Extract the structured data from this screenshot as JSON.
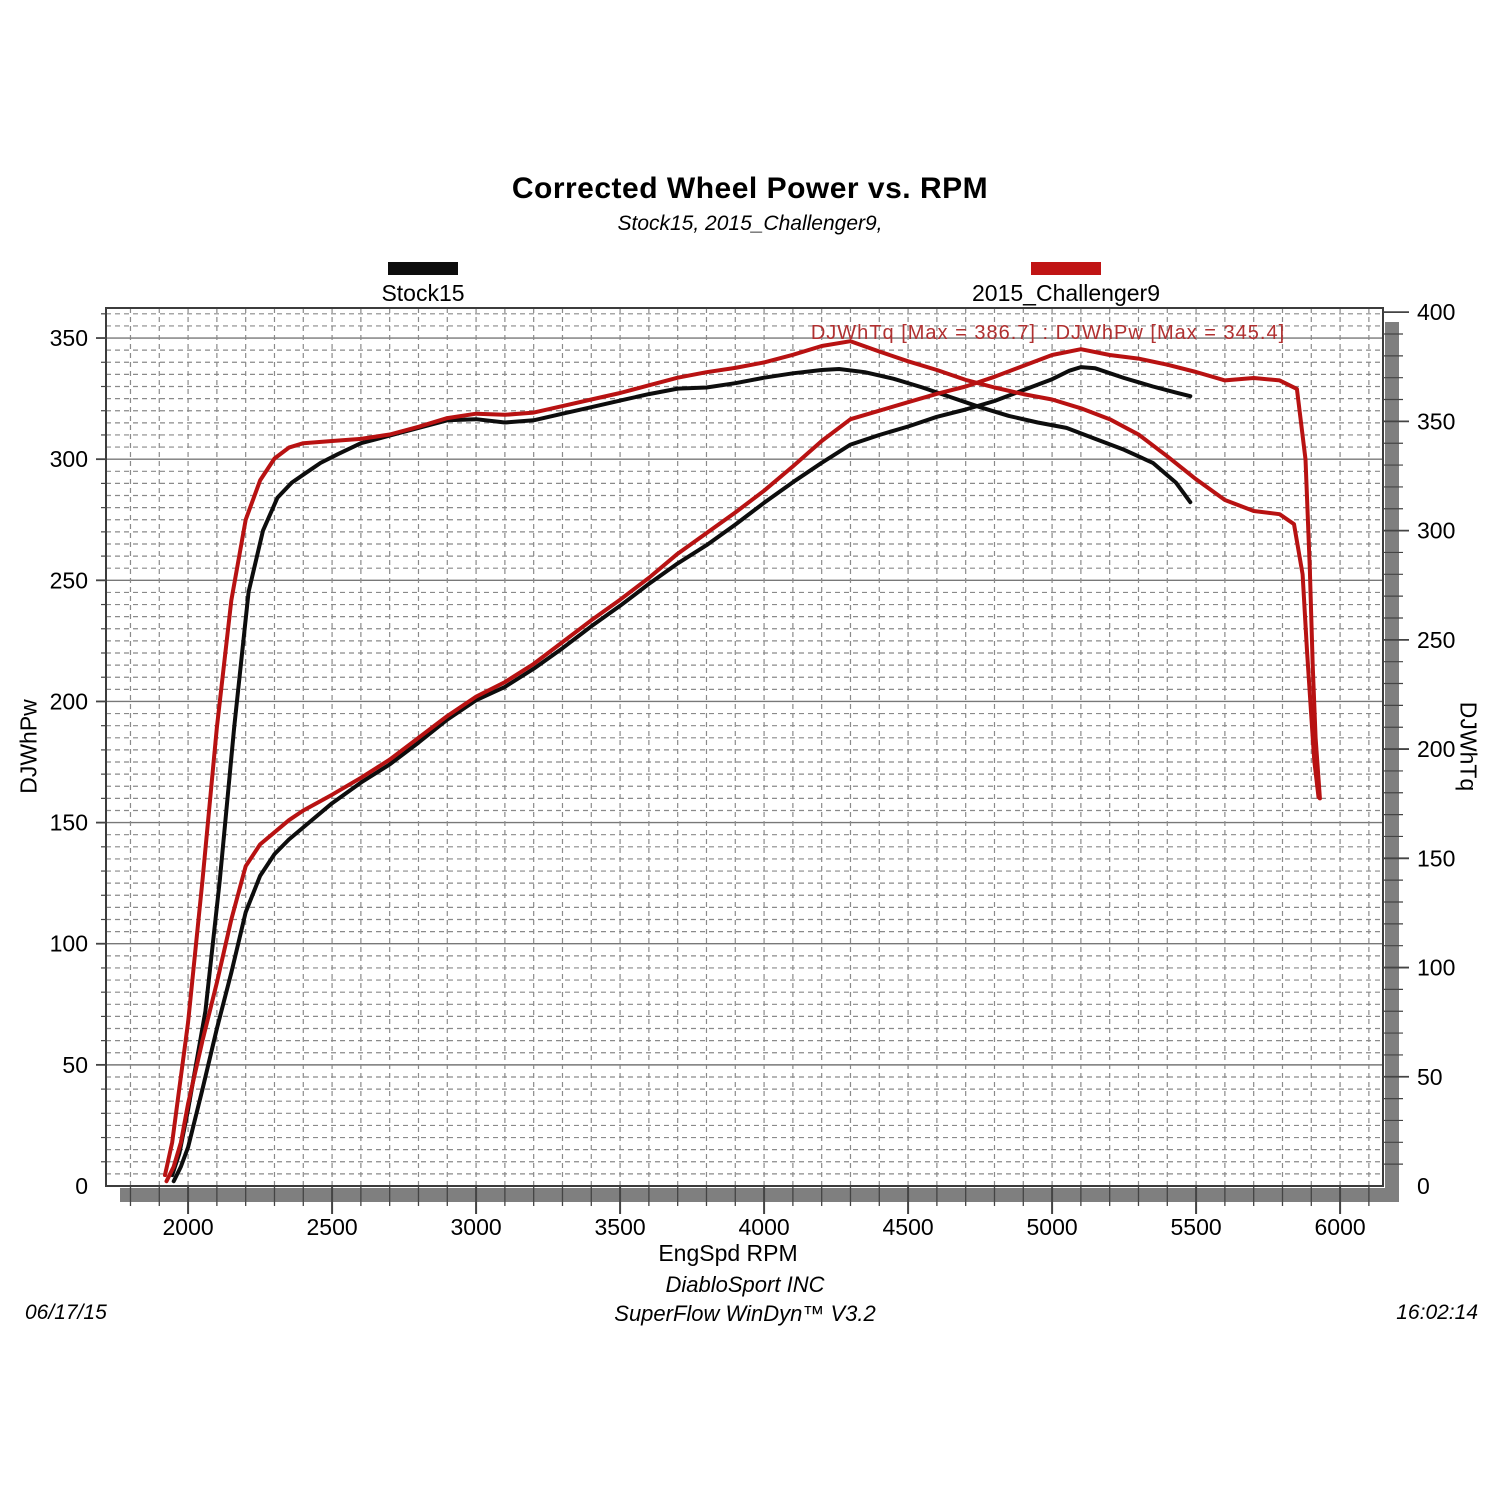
{
  "header": {
    "title": "Corrected Wheel Power vs. RPM",
    "subtitle": "Stock15, 2015_Challenger9,"
  },
  "legend": [
    {
      "label": "Stock15",
      "color": "#0d0d0d"
    },
    {
      "label": "2015_Challenger9",
      "color": "#c01414"
    }
  ],
  "annotation": {
    "text": "DJWhTq [Max = 386.7] : DJWhPw [Max = 345.4]",
    "color": "#b03030"
  },
  "footer": {
    "company": "DiabloSport INC",
    "software": "SuperFlow WinDyn™ V3.2",
    "date": "06/17/15",
    "time": "16:02:14"
  },
  "colors": {
    "stock_line": "#0d0d0d",
    "tuned_line": "#b81212",
    "grid_minor": "#8a8a8a",
    "grid_major": "#787878",
    "plot_border": "#3c3c3c",
    "shadow": "#7f7f7f",
    "tick": "#444444"
  },
  "chart_data": {
    "type": "line",
    "title": "Corrected Wheel Power vs. RPM",
    "xlabel": "EngSpd RPM",
    "ylabel_left": "DJWhPw",
    "ylabel_right": "DJWhTq",
    "x_range": [
      1715,
      6149
    ],
    "y_left_range": [
      0,
      362.4
    ],
    "y_right_range": [
      0,
      401.9
    ],
    "x_ticks": [
      2000,
      2500,
      3000,
      3500,
      4000,
      4500,
      5000,
      5500,
      6000
    ],
    "y_left_ticks": [
      0,
      50,
      100,
      150,
      200,
      250,
      300,
      350
    ],
    "y_right_ticks": [
      0,
      50,
      100,
      150,
      200,
      250,
      300,
      350,
      400
    ],
    "grid": {
      "v_minor_step_rpm": 100,
      "h_minor_step_left": 5,
      "h_major_step_left": 50,
      "legend_position": "top"
    },
    "max_values": {
      "tuned_DJWhTq": 386.7,
      "tuned_DJWhPw": 345.4
    },
    "series": [
      {
        "name": "Stock15 DJWhTq",
        "axis": "right",
        "color": "#0d0d0d",
        "points": [
          [
            1945,
            5
          ],
          [
            1970,
            15
          ],
          [
            2000,
            35
          ],
          [
            2060,
            80
          ],
          [
            2110,
            140
          ],
          [
            2160,
            210
          ],
          [
            2210,
            272
          ],
          [
            2260,
            300
          ],
          [
            2310,
            315
          ],
          [
            2360,
            322
          ],
          [
            2410,
            326.5
          ],
          [
            2460,
            331
          ],
          [
            2520,
            335
          ],
          [
            2600,
            340
          ],
          [
            2700,
            343.5
          ],
          [
            2800,
            347
          ],
          [
            2900,
            350.5
          ],
          [
            3000,
            351
          ],
          [
            3100,
            349.5
          ],
          [
            3200,
            350.5
          ],
          [
            3300,
            353.5
          ],
          [
            3400,
            356.5
          ],
          [
            3500,
            359.5
          ],
          [
            3600,
            362.5
          ],
          [
            3700,
            365
          ],
          [
            3800,
            365.5
          ],
          [
            3900,
            367.5
          ],
          [
            4000,
            370
          ],
          [
            4100,
            372
          ],
          [
            4200,
            373.5
          ],
          [
            4260,
            374
          ],
          [
            4350,
            372.5
          ],
          [
            4450,
            369.5
          ],
          [
            4550,
            365.5
          ],
          [
            4650,
            361
          ],
          [
            4750,
            356.5
          ],
          [
            4850,
            352.5
          ],
          [
            4950,
            349.5
          ],
          [
            5050,
            347
          ],
          [
            5150,
            342
          ],
          [
            5250,
            337
          ],
          [
            5350,
            331
          ],
          [
            5430,
            322
          ],
          [
            5480,
            313
          ]
        ]
      },
      {
        "name": "Stock15 DJWhPw",
        "axis": "left",
        "color": "#0d0d0d",
        "points": [
          [
            1950,
            2
          ],
          [
            1975,
            8
          ],
          [
            2000,
            16
          ],
          [
            2050,
            40
          ],
          [
            2100,
            65
          ],
          [
            2150,
            88
          ],
          [
            2200,
            113
          ],
          [
            2250,
            128
          ],
          [
            2300,
            137
          ],
          [
            2350,
            143
          ],
          [
            2400,
            148
          ],
          [
            2500,
            158
          ],
          [
            2600,
            166.5
          ],
          [
            2700,
            174
          ],
          [
            2800,
            183
          ],
          [
            2900,
            192.5
          ],
          [
            3000,
            200.5
          ],
          [
            3100,
            206
          ],
          [
            3200,
            213.5
          ],
          [
            3300,
            222
          ],
          [
            3400,
            231
          ],
          [
            3500,
            239.5
          ],
          [
            3600,
            248.5
          ],
          [
            3700,
            257
          ],
          [
            3800,
            264.5
          ],
          [
            3900,
            273
          ],
          [
            4000,
            282
          ],
          [
            4100,
            290.5
          ],
          [
            4200,
            298.5
          ],
          [
            4300,
            306
          ],
          [
            4400,
            310
          ],
          [
            4500,
            313.5
          ],
          [
            4600,
            317.5
          ],
          [
            4700,
            320.5
          ],
          [
            4800,
            324
          ],
          [
            4900,
            328.5
          ],
          [
            5000,
            333
          ],
          [
            5060,
            336.5
          ],
          [
            5100,
            338
          ],
          [
            5150,
            337.5
          ],
          [
            5250,
            333.5
          ],
          [
            5350,
            330
          ],
          [
            5430,
            327.5
          ],
          [
            5480,
            326
          ]
        ]
      },
      {
        "name": "2015_Challenger9 DJWhTq",
        "axis": "right",
        "color": "#b81212",
        "points": [
          [
            1920,
            5
          ],
          [
            1945,
            20
          ],
          [
            1970,
            45
          ],
          [
            2000,
            75
          ],
          [
            2050,
            140
          ],
          [
            2100,
            210
          ],
          [
            2150,
            268
          ],
          [
            2200,
            305
          ],
          [
            2250,
            323
          ],
          [
            2300,
            333
          ],
          [
            2350,
            338
          ],
          [
            2400,
            340
          ],
          [
            2500,
            341
          ],
          [
            2600,
            342
          ],
          [
            2700,
            344
          ],
          [
            2800,
            347.5
          ],
          [
            2900,
            351.5
          ],
          [
            3000,
            353.5
          ],
          [
            3100,
            353
          ],
          [
            3200,
            354
          ],
          [
            3300,
            357
          ],
          [
            3400,
            360
          ],
          [
            3500,
            363
          ],
          [
            3600,
            366.5
          ],
          [
            3700,
            370
          ],
          [
            3800,
            372.5
          ],
          [
            3900,
            374.5
          ],
          [
            4000,
            377
          ],
          [
            4100,
            380.5
          ],
          [
            4200,
            384.5
          ],
          [
            4300,
            386.7
          ],
          [
            4400,
            382
          ],
          [
            4500,
            377.5
          ],
          [
            4600,
            373.5
          ],
          [
            4700,
            369
          ],
          [
            4800,
            365.5
          ],
          [
            4900,
            362.5
          ],
          [
            5000,
            360
          ],
          [
            5100,
            356
          ],
          [
            5200,
            351
          ],
          [
            5300,
            344
          ],
          [
            5400,
            334
          ],
          [
            5500,
            323.5
          ],
          [
            5600,
            314
          ],
          [
            5700,
            309
          ],
          [
            5790,
            307.5
          ],
          [
            5840,
            303
          ],
          [
            5870,
            280
          ],
          [
            5885,
            245
          ],
          [
            5900,
            215
          ],
          [
            5910,
            195
          ],
          [
            5925,
            178
          ]
        ]
      },
      {
        "name": "2015_Challenger9 DJWhPw",
        "axis": "left",
        "color": "#b81212",
        "points": [
          [
            1925,
            2
          ],
          [
            1950,
            8
          ],
          [
            1975,
            18
          ],
          [
            2000,
            34
          ],
          [
            2050,
            60
          ],
          [
            2100,
            84
          ],
          [
            2150,
            110
          ],
          [
            2200,
            132
          ],
          [
            2250,
            141
          ],
          [
            2300,
            146
          ],
          [
            2350,
            151
          ],
          [
            2400,
            155
          ],
          [
            2500,
            161.5
          ],
          [
            2600,
            168.5
          ],
          [
            2700,
            176
          ],
          [
            2800,
            185
          ],
          [
            2900,
            194
          ],
          [
            3000,
            202
          ],
          [
            3100,
            208
          ],
          [
            3200,
            215.5
          ],
          [
            3300,
            224.5
          ],
          [
            3400,
            233.5
          ],
          [
            3500,
            242
          ],
          [
            3600,
            251
          ],
          [
            3700,
            261
          ],
          [
            3800,
            269.5
          ],
          [
            3900,
            278
          ],
          [
            4000,
            287
          ],
          [
            4100,
            297
          ],
          [
            4200,
            307.5
          ],
          [
            4300,
            316.5
          ],
          [
            4400,
            320
          ],
          [
            4500,
            323.5
          ],
          [
            4600,
            327
          ],
          [
            4700,
            330
          ],
          [
            4800,
            334
          ],
          [
            4900,
            338.5
          ],
          [
            5000,
            343
          ],
          [
            5100,
            345.4
          ],
          [
            5200,
            343
          ],
          [
            5300,
            341.5
          ],
          [
            5400,
            339
          ],
          [
            5500,
            336
          ],
          [
            5600,
            332.5
          ],
          [
            5700,
            333.5
          ],
          [
            5790,
            332.5
          ],
          [
            5850,
            329
          ],
          [
            5880,
            300
          ],
          [
            5895,
            255
          ],
          [
            5905,
            215
          ],
          [
            5915,
            185
          ],
          [
            5930,
            160
          ]
        ]
      }
    ]
  }
}
